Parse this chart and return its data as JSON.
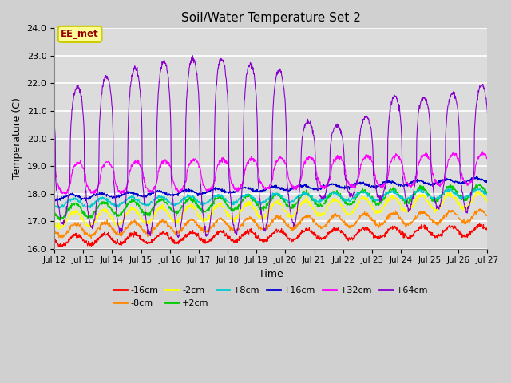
{
  "title": "Soil/Water Temperature Set 2",
  "xlabel": "Time",
  "ylabel": "Temperature (C)",
  "ylim": [
    16.0,
    24.0
  ],
  "xlim": [
    0,
    360
  ],
  "yticks": [
    16.0,
    17.0,
    18.0,
    19.0,
    20.0,
    21.0,
    22.0,
    23.0,
    24.0
  ],
  "xtick_positions": [
    0,
    24,
    48,
    72,
    96,
    120,
    144,
    168,
    192,
    216,
    240,
    264,
    288,
    312,
    336,
    360
  ],
  "xtick_labels": [
    "Jul 12",
    "Jul 13",
    "Jul 14",
    "Jul 15",
    "Jul 16",
    "Jul 17",
    "Jul 18",
    "Jul 19",
    "Jul 20",
    "Jul 21",
    "Jul 22",
    "Jul 23",
    "Jul 24",
    "Jul 25",
    "Jul 26",
    "Jul 27"
  ],
  "series": {
    "-16cm": {
      "color": "#ff0000"
    },
    "-8cm": {
      "color": "#ff8800"
    },
    "-2cm": {
      "color": "#ffff00"
    },
    "+2cm": {
      "color": "#00cc00"
    },
    "+8cm": {
      "color": "#00cccc"
    },
    "+16cm": {
      "color": "#0000cc"
    },
    "+32cm": {
      "color": "#ff00ff"
    },
    "+64cm": {
      "color": "#8800cc"
    }
  },
  "legend_label": "EE_met",
  "fig_bg_color": "#d0d0d0",
  "plot_bg_color": "#dcdcdc",
  "annotation_box_color": "#ffff99",
  "annotation_text_color": "#990000",
  "annotation_edge_color": "#cccc00"
}
